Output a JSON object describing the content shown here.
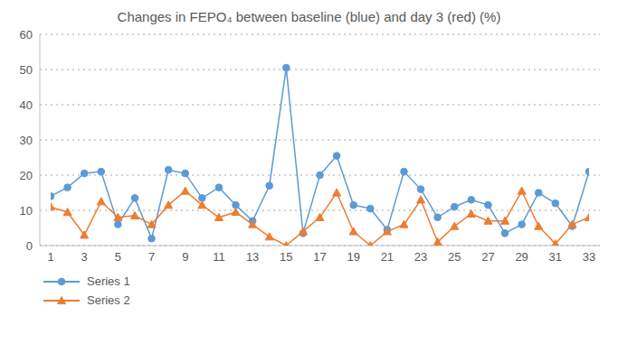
{
  "chart_data": {
    "type": "line",
    "title": "Changes in FEPO₄ between baseline (blue) and day 3 (red) (%)",
    "x": [
      1,
      2,
      3,
      4,
      5,
      6,
      7,
      8,
      9,
      10,
      11,
      12,
      13,
      14,
      15,
      16,
      17,
      18,
      19,
      20,
      21,
      22,
      23,
      24,
      25,
      26,
      27,
      28,
      29,
      30,
      31,
      32,
      33
    ],
    "xlim": [
      1,
      33
    ],
    "xticks": [
      1,
      3,
      5,
      7,
      9,
      11,
      13,
      15,
      17,
      19,
      21,
      23,
      25,
      27,
      29,
      31,
      33
    ],
    "ylim": [
      0,
      60
    ],
    "yticks": [
      0,
      10,
      20,
      30,
      40,
      50,
      60
    ],
    "grid": true,
    "legend": "bottom-left",
    "series": [
      {
        "name": "Series 1",
        "color": "#5b9bd5",
        "marker": "circle",
        "values": [
          14,
          16.5,
          20.5,
          21,
          6,
          13.5,
          2,
          21.5,
          20.5,
          13.5,
          16.5,
          11.5,
          7,
          17,
          50.5,
          3.5,
          20,
          25.5,
          11.5,
          10.5,
          4.5,
          21,
          16,
          8,
          11,
          13,
          11.5,
          3.5,
          6,
          15,
          12,
          5.5,
          21
        ]
      },
      {
        "name": "Series 2",
        "color": "#ed7d31",
        "marker": "triangle",
        "values": [
          11,
          9.5,
          3,
          12.5,
          8,
          8.5,
          6,
          11.5,
          15.5,
          11.5,
          8,
          9.5,
          6,
          2.5,
          0,
          4,
          8,
          15,
          4,
          0,
          4,
          6,
          13,
          1,
          5.5,
          9,
          7,
          7,
          15.5,
          5.5,
          0.5,
          6,
          8
        ]
      }
    ]
  }
}
